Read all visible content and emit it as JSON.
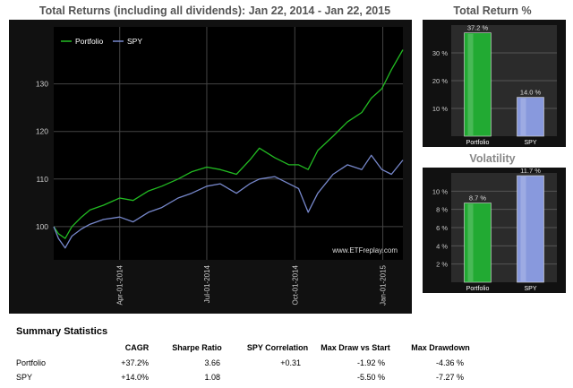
{
  "chart_data": [
    {
      "type": "line",
      "title": "Total Returns (including all dividends): Jan 22, 2014 - Jan 22, 2015",
      "watermark": "www.ETFreplay.com",
      "legend_position": "top-left",
      "ylim": [
        93,
        142
      ],
      "y_ticks": [
        100,
        110,
        120,
        130
      ],
      "x_ticks": [
        "Apr-01-2014",
        "Jul-01-2014",
        "Oct-01-2014",
        "Jan-01-2015"
      ],
      "series": [
        {
          "name": "Portfolio",
          "color": "#22bb22",
          "points": [
            [
              "2014-01-22",
              100
            ],
            [
              "2014-01-27",
              98.5
            ],
            [
              "2014-02-03",
              97.5
            ],
            [
              "2014-02-10",
              100
            ],
            [
              "2014-02-20",
              102
            ],
            [
              "2014-03-01",
              103.5
            ],
            [
              "2014-03-15",
              104.5
            ],
            [
              "2014-04-01",
              106
            ],
            [
              "2014-04-15",
              105.5
            ],
            [
              "2014-05-01",
              107.5
            ],
            [
              "2014-05-15",
              108.5
            ],
            [
              "2014-06-01",
              110
            ],
            [
              "2014-06-15",
              111.5
            ],
            [
              "2014-07-01",
              112.5
            ],
            [
              "2014-07-15",
              112
            ],
            [
              "2014-08-01",
              111
            ],
            [
              "2014-08-15",
              114
            ],
            [
              "2014-08-25",
              116.5
            ],
            [
              "2014-09-10",
              114.5
            ],
            [
              "2014-09-25",
              113
            ],
            [
              "2014-10-05",
              113
            ],
            [
              "2014-10-15",
              112
            ],
            [
              "2014-10-25",
              116
            ],
            [
              "2014-11-10",
              119
            ],
            [
              "2014-11-25",
              122
            ],
            [
              "2014-12-10",
              124
            ],
            [
              "2014-12-20",
              127
            ],
            [
              "2014-12-31",
              129
            ],
            [
              "2015-01-10",
              133
            ],
            [
              "2015-01-22",
              137.2
            ]
          ]
        },
        {
          "name": "SPY",
          "color": "#7788cc",
          "points": [
            [
              "2014-01-22",
              100
            ],
            [
              "2014-01-27",
              97.5
            ],
            [
              "2014-02-03",
              95.5
            ],
            [
              "2014-02-10",
              98
            ],
            [
              "2014-02-20",
              99.5
            ],
            [
              "2014-03-01",
              100.5
            ],
            [
              "2014-03-15",
              101.5
            ],
            [
              "2014-04-01",
              102
            ],
            [
              "2014-04-15",
              101
            ],
            [
              "2014-05-01",
              103
            ],
            [
              "2014-05-15",
              104
            ],
            [
              "2014-06-01",
              106
            ],
            [
              "2014-06-15",
              107
            ],
            [
              "2014-07-01",
              108.5
            ],
            [
              "2014-07-15",
              109
            ],
            [
              "2014-08-01",
              107
            ],
            [
              "2014-08-15",
              109
            ],
            [
              "2014-08-25",
              110
            ],
            [
              "2014-09-10",
              110.5
            ],
            [
              "2014-09-25",
              109
            ],
            [
              "2014-10-05",
              108
            ],
            [
              "2014-10-15",
              103
            ],
            [
              "2014-10-25",
              107
            ],
            [
              "2014-11-10",
              111
            ],
            [
              "2014-11-25",
              113
            ],
            [
              "2014-12-10",
              112
            ],
            [
              "2014-12-20",
              115
            ],
            [
              "2014-12-31",
              112
            ],
            [
              "2015-01-10",
              111
            ],
            [
              "2015-01-22",
              114
            ]
          ]
        }
      ]
    },
    {
      "type": "bar",
      "title": "Total Return %",
      "categories": [
        "Portfolio",
        "SPY"
      ],
      "values": [
        37.2,
        14.0
      ],
      "value_labels": [
        "37.2 %",
        "14.0 %"
      ],
      "colors": [
        "#22aa33",
        "#8899dd"
      ],
      "ylim": [
        0,
        40
      ],
      "y_ticks": [
        10,
        20,
        30
      ],
      "y_tick_labels": [
        "10 %",
        "20 %",
        "30 %"
      ]
    },
    {
      "type": "bar",
      "title": "Volatility",
      "categories": [
        "Portfolio",
        "SPY"
      ],
      "values": [
        8.7,
        11.7
      ],
      "value_labels": [
        "8.7 %",
        "11.7 %"
      ],
      "colors": [
        "#22aa33",
        "#8899dd"
      ],
      "ylim": [
        0,
        12
      ],
      "y_ticks": [
        2,
        4,
        6,
        8,
        10
      ],
      "y_tick_labels": [
        "2 %",
        "4 %",
        "6 %",
        "8 %",
        "10 %"
      ]
    }
  ],
  "summary": {
    "title": "Summary Statistics",
    "headers": [
      "CAGR",
      "Sharpe Ratio",
      "SPY Correlation",
      "Max Draw vs Start",
      "Max Drawdown"
    ],
    "rows": [
      {
        "name": "Portfolio",
        "cells": [
          "+37.2%",
          "3.66",
          "+0.31",
          "-1.92 %",
          "-4.36 %"
        ]
      },
      {
        "name": "SPY",
        "cells": [
          "+14.0%",
          "1.08",
          "",
          "-5.50 %",
          "-7.27 %"
        ]
      }
    ]
  }
}
